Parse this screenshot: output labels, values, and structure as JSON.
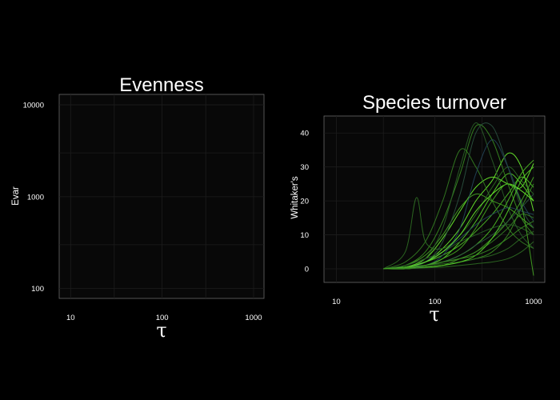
{
  "chart_data": [
    {
      "type": "line",
      "title": "Evenness",
      "xlabel": "τ",
      "ylabel": "Evar",
      "x_scale": "log",
      "y_scale": "log",
      "xlim": [
        7.5,
        1300
      ],
      "ylim": [
        78,
        13000
      ],
      "x_ticks": [
        10,
        100,
        1000
      ],
      "x_tick_labels": [
        "10",
        "100",
        "1000"
      ],
      "y_ticks": [
        100,
        1000,
        10000
      ],
      "y_tick_labels": [
        "100",
        "1000",
        "10000"
      ],
      "grid": true,
      "series": []
    },
    {
      "type": "line",
      "title": "Species turnover",
      "xlabel": "τ",
      "ylabel": "Whitaker's",
      "x_scale": "log",
      "y_scale": "linear",
      "xlim": [
        7.5,
        1300
      ],
      "ylim": [
        -4,
        45
      ],
      "x_ticks": [
        10,
        100,
        1000
      ],
      "x_tick_labels": [
        "10",
        "100",
        "1000"
      ],
      "y_ticks": [
        0,
        10,
        20,
        30,
        40
      ],
      "y_tick_labels": [
        "0",
        "10",
        "20",
        "30",
        "40"
      ],
      "grid": true,
      "series": [
        {
          "color": "#6cf22e",
          "x": [
            30,
            50,
            80,
            120,
            180,
            260,
            380,
            550,
            750,
            1000
          ],
          "y": [
            0,
            0.5,
            3,
            9,
            17,
            24,
            27,
            25,
            24,
            31
          ]
        },
        {
          "color": "#6cf22e",
          "x": [
            30,
            50,
            80,
            120,
            180,
            260,
            380,
            550,
            750,
            1000
          ],
          "y": [
            0,
            0.3,
            2,
            6,
            12,
            20,
            26,
            34,
            30,
            17
          ]
        },
        {
          "color": "#58d428",
          "x": [
            30,
            50,
            80,
            120,
            180,
            260,
            380,
            550,
            750,
            1000
          ],
          "y": [
            0,
            0.2,
            1,
            3,
            8,
            14,
            22,
            28,
            25,
            20
          ]
        },
        {
          "color": "#4fbf26",
          "x": [
            30,
            50,
            80,
            120,
            180,
            260,
            380,
            550,
            750,
            1000
          ],
          "y": [
            0,
            0.5,
            2,
            4,
            7,
            11,
            16,
            22,
            27,
            24
          ]
        },
        {
          "color": "#46a823",
          "x": [
            30,
            50,
            80,
            120,
            180,
            260,
            380,
            550,
            750,
            1000
          ],
          "y": [
            0,
            1,
            4,
            10,
            18,
            22,
            20,
            18,
            15,
            12
          ]
        },
        {
          "color": "#3a8e22",
          "x": [
            30,
            50,
            80,
            120,
            180,
            260,
            380,
            550,
            750,
            1000
          ],
          "y": [
            0,
            1,
            5,
            14,
            28,
            42,
            38,
            25,
            15,
            10
          ]
        },
        {
          "color": "#357f22",
          "x": [
            30,
            50,
            80,
            120,
            180,
            260,
            380,
            550,
            750,
            1000
          ],
          "y": [
            0,
            2,
            8,
            20,
            35,
            30,
            20,
            12,
            8,
            6
          ]
        },
        {
          "color": "#2f6e24",
          "x": [
            30,
            50,
            65,
            80,
            120,
            180,
            260,
            380,
            550,
            750,
            1000
          ],
          "y": [
            0,
            5,
            21,
            8,
            6,
            10,
            16,
            24,
            30,
            26,
            22
          ]
        },
        {
          "color": "#2a5e28",
          "x": [
            30,
            50,
            80,
            120,
            180,
            260,
            380,
            550,
            750,
            1000
          ],
          "y": [
            0,
            0.5,
            3,
            12,
            30,
            43,
            32,
            18,
            10,
            6
          ]
        },
        {
          "color": "#2b5240",
          "x": [
            30,
            50,
            80,
            120,
            180,
            260,
            380,
            550,
            750,
            1000
          ],
          "y": [
            0,
            0.5,
            2,
            8,
            22,
            40,
            42,
            30,
            18,
            12
          ]
        },
        {
          "color": "#24465a",
          "x": [
            30,
            50,
            80,
            120,
            180,
            260,
            380,
            550,
            750,
            1000
          ],
          "y": [
            0,
            0.2,
            1,
            4,
            12,
            28,
            38,
            30,
            20,
            14
          ]
        },
        {
          "color": "#4fbf26",
          "x": [
            30,
            50,
            80,
            120,
            180,
            260,
            380,
            550,
            750,
            1000
          ],
          "y": [
            0,
            0.2,
            1,
            2,
            4,
            7,
            12,
            20,
            28,
            32
          ]
        },
        {
          "color": "#46a823",
          "x": [
            30,
            50,
            80,
            120,
            180,
            260,
            380,
            550,
            750,
            1000
          ],
          "y": [
            0,
            0,
            0.5,
            1,
            3,
            5,
            9,
            14,
            20,
            27
          ]
        },
        {
          "color": "#3a8e22",
          "x": [
            30,
            50,
            80,
            120,
            180,
            260,
            380,
            550,
            750,
            1000
          ],
          "y": [
            0,
            0,
            0.5,
            1,
            2,
            3,
            5,
            10,
            18,
            25
          ]
        },
        {
          "color": "#357f22",
          "x": [
            30,
            50,
            80,
            120,
            180,
            260,
            380,
            550,
            750,
            1000
          ],
          "y": [
            0,
            0.5,
            1,
            2,
            3,
            5,
            8,
            12,
            16,
            15
          ]
        },
        {
          "color": "#2f6e24",
          "x": [
            30,
            50,
            80,
            120,
            180,
            260,
            380,
            550,
            750,
            1000
          ],
          "y": [
            0,
            0.5,
            1,
            1.5,
            2,
            3,
            4,
            6,
            9,
            11
          ]
        },
        {
          "color": "#2a5e28",
          "x": [
            30,
            50,
            80,
            120,
            180,
            260,
            380,
            550,
            750,
            1000
          ],
          "y": [
            0,
            1,
            3,
            5,
            8,
            10,
            12,
            13,
            12,
            10
          ]
        },
        {
          "color": "#2b5240",
          "x": [
            30,
            50,
            80,
            120,
            180,
            260,
            380,
            550,
            750,
            1000
          ],
          "y": [
            0,
            0.5,
            1,
            2,
            4,
            7,
            10,
            14,
            18,
            22
          ]
        },
        {
          "color": "#24465a",
          "x": [
            30,
            50,
            80,
            120,
            180,
            260,
            380,
            550,
            750,
            1000
          ],
          "y": [
            0,
            0.5,
            2,
            5,
            9,
            13,
            16,
            18,
            17,
            16
          ]
        },
        {
          "color": "#58d428",
          "x": [
            30,
            50,
            80,
            120,
            180,
            260,
            380,
            550,
            750,
            1000
          ],
          "y": [
            0,
            0,
            0.5,
            1,
            2,
            4,
            9,
            17,
            26,
            30
          ]
        },
        {
          "color": "#6cf22e",
          "x": [
            30,
            50,
            80,
            120,
            180,
            260,
            380,
            550,
            750,
            1000
          ],
          "y": [
            0,
            0.5,
            2,
            5,
            10,
            17,
            22,
            25,
            23,
            20
          ]
        },
        {
          "color": "#3a8e22",
          "x": [
            30,
            50,
            80,
            120,
            180,
            260,
            380,
            550,
            750,
            1000
          ],
          "y": [
            0,
            0.3,
            1,
            2,
            3,
            4,
            6,
            9,
            12,
            14
          ]
        },
        {
          "color": "#2f6e24",
          "x": [
            30,
            50,
            80,
            120,
            180,
            260,
            380,
            550,
            750,
            1000
          ],
          "y": [
            0,
            0,
            0.3,
            0.5,
            1,
            1.5,
            2,
            3,
            5,
            8
          ]
        },
        {
          "color": "#46a823",
          "x": [
            30,
            50,
            80,
            120,
            180,
            260,
            380,
            550,
            750,
            1000
          ],
          "y": [
            0,
            0.5,
            1,
            3,
            6,
            12,
            20,
            25,
            19,
            -2
          ]
        }
      ]
    }
  ]
}
